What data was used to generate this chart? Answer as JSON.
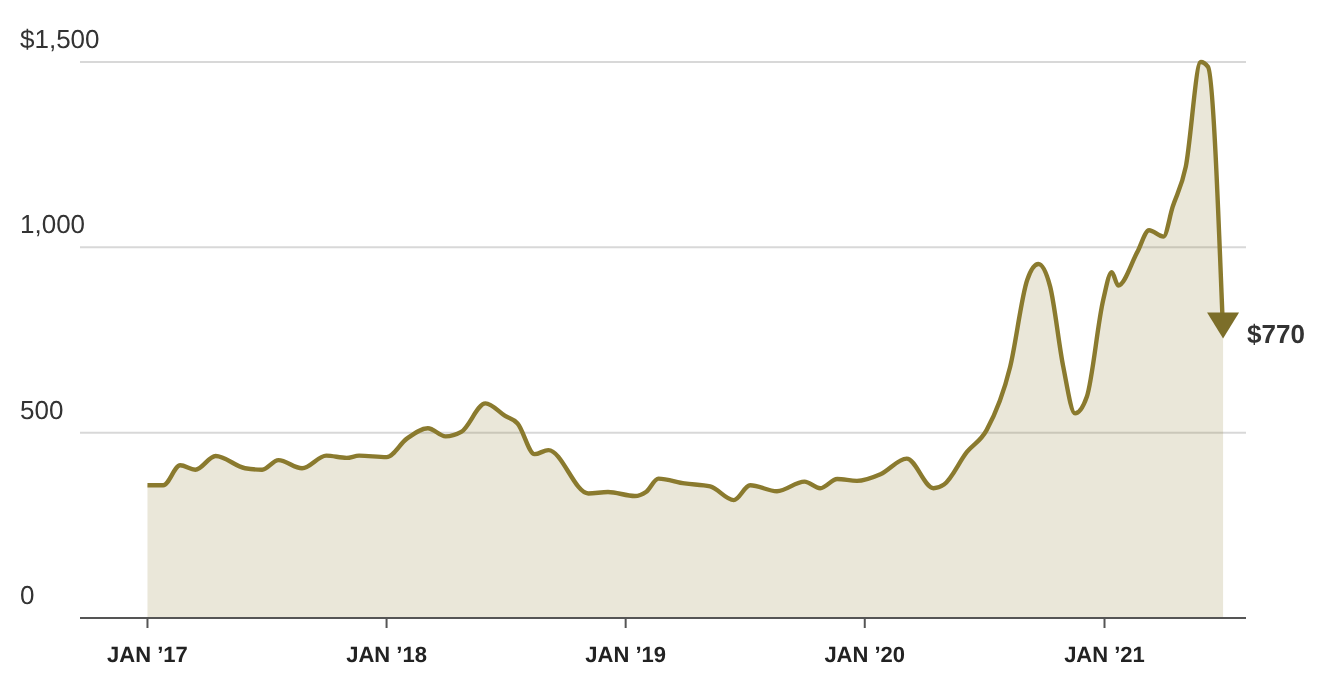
{
  "chart_data": {
    "type": "area",
    "x": [
      "2017-01-01",
      "2017-01-25",
      "2017-02-20",
      "2017-03-15",
      "2017-04-15",
      "2017-05-30",
      "2017-06-25",
      "2017-07-20",
      "2017-08-25",
      "2017-10-01",
      "2017-11-01",
      "2017-11-20",
      "2018-01-01",
      "2018-02-01",
      "2018-03-05",
      "2018-04-01",
      "2018-04-25",
      "2018-06-01",
      "2018-07-01",
      "2018-07-20",
      "2018-08-15",
      "2018-09-05",
      "2018-11-05",
      "2018-12-05",
      "2019-01-15",
      "2019-02-01",
      "2019-02-20",
      "2019-04-01",
      "2019-05-10",
      "2019-06-15",
      "2019-07-10",
      "2019-08-20",
      "2019-10-01",
      "2019-10-25",
      "2019-11-20",
      "2019-12-20",
      "2020-01-25",
      "2020-03-05",
      "2020-04-15",
      "2020-05-01",
      "2020-06-05",
      "2020-07-05",
      "2020-08-10",
      "2020-09-05",
      "2020-09-22",
      "2020-10-10",
      "2020-10-30",
      "2020-11-17",
      "2020-12-05",
      "2020-12-30",
      "2021-01-12",
      "2021-01-22",
      "2021-02-20",
      "2021-03-10",
      "2021-04-01",
      "2021-04-15",
      "2021-05-05",
      "2021-05-28",
      "2021-06-08",
      "2021-07-01"
    ],
    "series": [
      {
        "color": "#8a7a2e",
        "values": [
          358,
          358,
          412,
          400,
          437,
          404,
          400,
          426,
          404,
          438,
          432,
          438,
          434,
          484,
          512,
          490,
          502,
          579,
          545,
          525,
          442,
          453,
          336,
          340,
          329,
          340,
          376,
          363,
          355,
          318,
          358,
          342,
          368,
          350,
          375,
          370,
          388,
          430,
          350,
          360,
          448,
          507,
          678,
          912,
          955,
          894,
          678,
          552,
          597,
          858,
          933,
          897,
          987,
          1046,
          1029,
          1109,
          1217,
          1500,
          1487,
          770
        ]
      }
    ],
    "xlim": [
      "2016-09-20",
      "2021-08-05"
    ],
    "ylim": [
      0,
      1500
    ],
    "xticks": [
      {
        "value": "2017-01-01",
        "label": "JAN ’17"
      },
      {
        "value": "2018-01-01",
        "label": "JAN ’18"
      },
      {
        "value": "2019-01-01",
        "label": "JAN ’19"
      },
      {
        "value": "2020-01-01",
        "label": "JAN ’20"
      },
      {
        "value": "2021-01-01",
        "label": "JAN ’21"
      }
    ],
    "yticks": [
      {
        "value": 0,
        "label": "0"
      },
      {
        "value": 500,
        "label": "500"
      },
      {
        "value": 1000,
        "label": "1,000"
      },
      {
        "value": 1500,
        "label": "$1,500"
      }
    ],
    "grid": "y",
    "annotations": [
      {
        "text": "$770",
        "x": "2021-07-01",
        "y": 770
      }
    ]
  }
}
